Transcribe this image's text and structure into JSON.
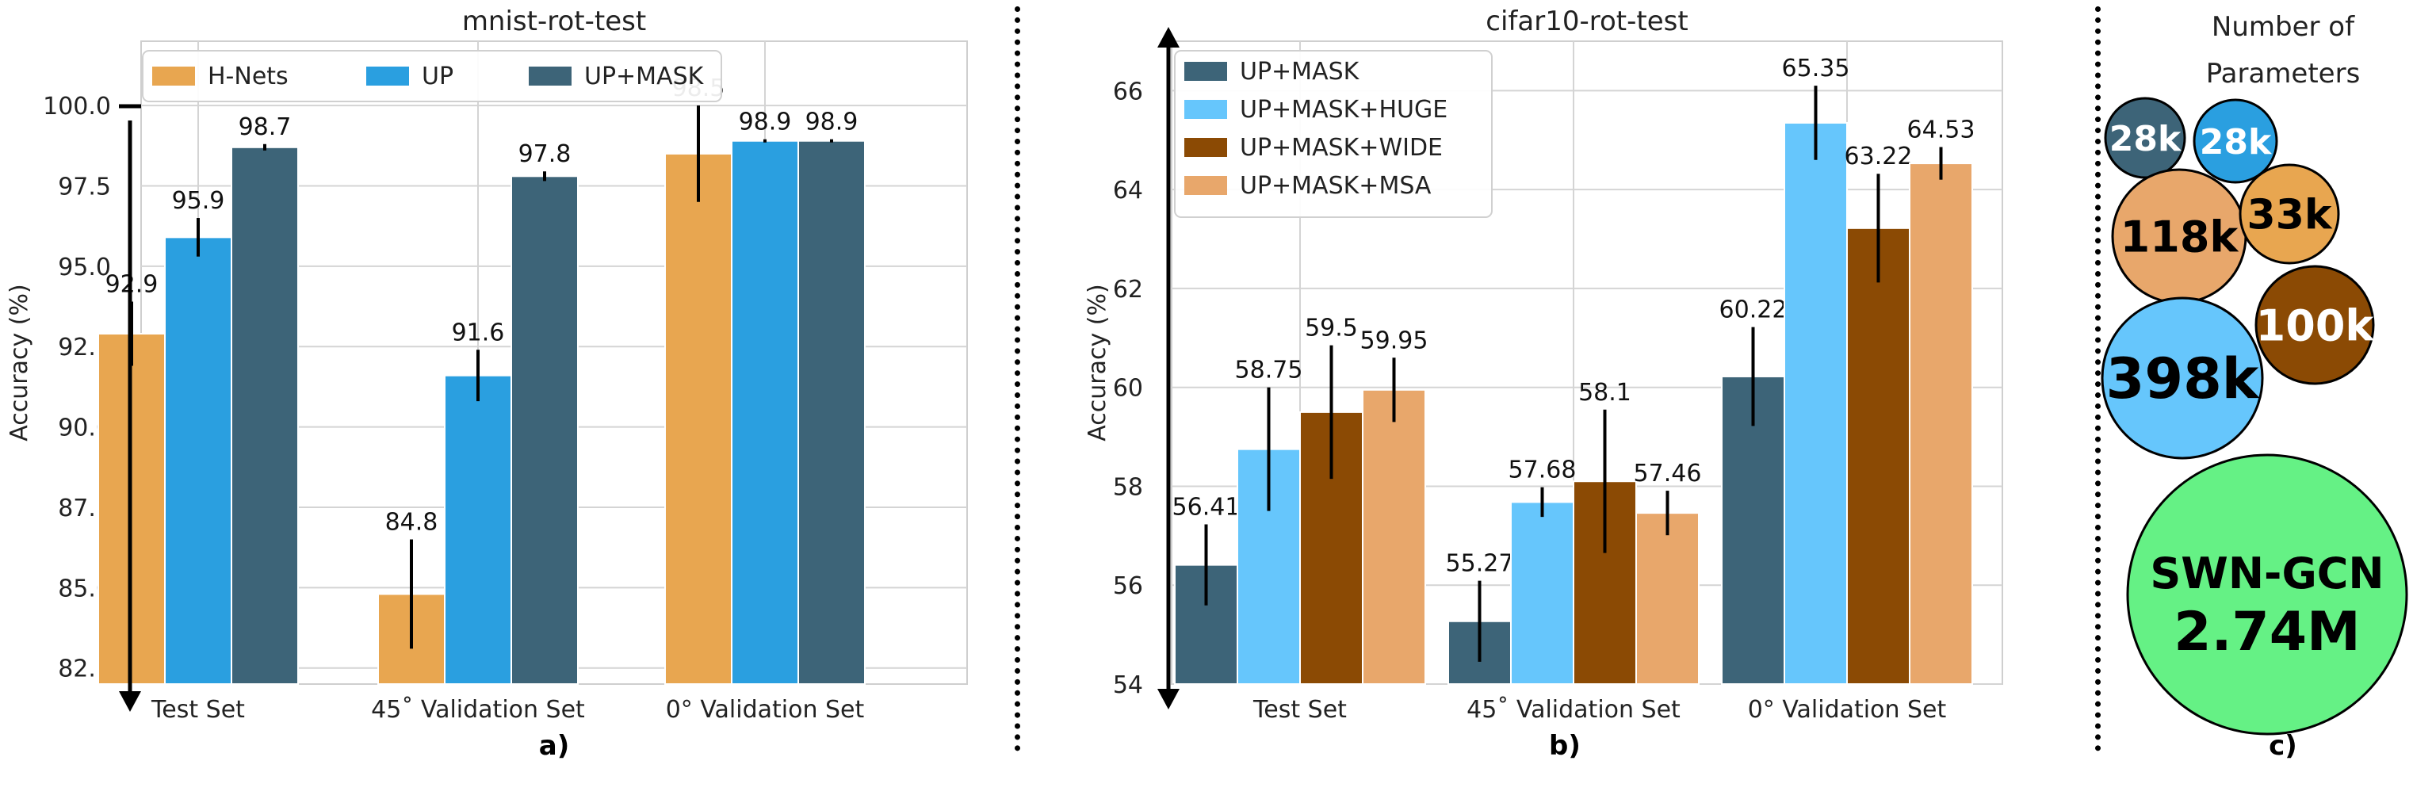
{
  "figure": {
    "bubble_title": "Number of Parameters",
    "bubble_title_lines": [
      "Number of",
      "Parameters"
    ],
    "bubbles": [
      {
        "label": "28k",
        "value": 28000,
        "color": "#3d6478",
        "text_color": "#ffffff"
      },
      {
        "label": "28k",
        "value": 28000,
        "color": "#2a9fe0",
        "text_color": "#ffffff"
      },
      {
        "label": "118k",
        "value": 118000,
        "color": "#e8a76b",
        "text_color": "#000000"
      },
      {
        "label": "33k",
        "value": 33000,
        "color": "#e8a650",
        "text_color": "#000000"
      },
      {
        "label": "100k",
        "value": 100000,
        "color": "#8b4a04",
        "text_color": "#ffffff"
      },
      {
        "label": "398k",
        "value": 398000,
        "color": "#66c6fc",
        "text_color": "#000000"
      },
      {
        "label": "SWN-GCN",
        "label2": "2.74M",
        "value": 2740000,
        "color": "#65f185",
        "text_color": "#000000"
      }
    ],
    "panel_labels": [
      "a)",
      "b)",
      "c)"
    ]
  },
  "chart_data": [
    {
      "type": "bar",
      "title": "mnist-rot-test",
      "xlabel": "",
      "ylabel": "Accuracy (%)",
      "categories": [
        "Test Set",
        "45˚ Validation Set",
        "0° Validation Set"
      ],
      "ylim": [
        82.0,
        102.0
      ],
      "yticks": [
        82.5,
        85.0,
        87.5,
        90.0,
        92.5,
        95.0,
        97.5,
        100.0
      ],
      "ytick_labels": [
        "82.5",
        "85.0",
        "87.5",
        "90.0",
        "92.5",
        "95.0",
        "97.5",
        "100.0"
      ],
      "grid": true,
      "legend": "top, horizontal",
      "series": [
        {
          "name": "H-Nets",
          "color": "#e8a650",
          "values": [
            92.9,
            84.8,
            98.5
          ],
          "errors": [
            1.0,
            1.7,
            1.5
          ],
          "labels": [
            "92.9",
            "84.8",
            "98.5"
          ]
        },
        {
          "name": "UP",
          "color": "#2a9fe0",
          "values": [
            95.9,
            91.6,
            98.9
          ],
          "errors": [
            0.6,
            0.8,
            0.05
          ],
          "labels": [
            "95.9",
            "91.6",
            "98.9"
          ]
        },
        {
          "name": "UP+MASK",
          "color": "#3d6478",
          "values": [
            98.7,
            97.8,
            98.9
          ],
          "errors": [
            0.1,
            0.15,
            0.05
          ],
          "labels": [
            "98.7",
            "97.8",
            "98.9"
          ]
        }
      ]
    },
    {
      "type": "bar",
      "title": "cifar10-rot-test",
      "xlabel": "",
      "ylabel": "Accuracy (%)",
      "categories": [
        "Test Set",
        "45˚ Validation Set",
        "0° Validation Set"
      ],
      "ylim": [
        54.0,
        67.0
      ],
      "yticks": [
        54,
        56,
        58,
        60,
        62,
        64,
        66
      ],
      "ytick_labels": [
        "54",
        "56",
        "58",
        "60",
        "62",
        "64",
        "66"
      ],
      "grid": true,
      "legend": "top-left",
      "series": [
        {
          "name": "UP+MASK",
          "color": "#3d6478",
          "values": [
            56.41,
            55.27,
            60.22
          ],
          "errors": [
            0.82,
            0.82,
            1.0
          ],
          "labels": [
            "56.41",
            "55.27",
            "60.22"
          ]
        },
        {
          "name": "UP+MASK+HUGE",
          "color": "#66c6fc",
          "values": [
            58.75,
            57.68,
            65.35
          ],
          "errors": [
            1.25,
            0.3,
            0.75
          ],
          "labels": [
            "58.75",
            "57.68",
            "65.35"
          ]
        },
        {
          "name": "UP+MASK+WIDE",
          "color": "#8b4a04",
          "values": [
            59.5,
            58.1,
            63.22
          ],
          "errors": [
            1.35,
            1.45,
            1.1
          ],
          "labels": [
            "59.5",
            "58.1",
            "63.22"
          ]
        },
        {
          "name": "UP+MASK+MSA",
          "color": "#e8a76b",
          "values": [
            59.95,
            57.46,
            64.53
          ],
          "errors": [
            0.65,
            0.45,
            0.33
          ],
          "labels": [
            "59.95",
            "57.46",
            "64.53"
          ]
        }
      ]
    }
  ]
}
